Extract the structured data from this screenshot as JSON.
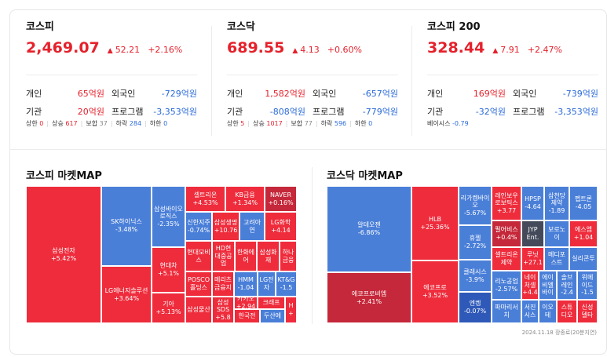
{
  "colors": {
    "up": "#e5212b",
    "down": "#2a6ad8",
    "up_tile": "#ee2c3c",
    "up_dark": "#c5283a",
    "down_tile": "#4a7fd8",
    "down_dark": "#2f59b8",
    "flat_tile": "#444a5a"
  },
  "indices": [
    {
      "name": "코스피",
      "value": "2,469.07",
      "arrow": "▲",
      "change": "52.21",
      "rate": "+2.16%",
      "investors": [
        {
          "label": "개인",
          "value": "65억원",
          "dir": "up"
        },
        {
          "label": "외국인",
          "value": "-729억원",
          "dir": "down"
        },
        {
          "label": "기관",
          "value": "20억원",
          "dir": "up"
        },
        {
          "label": "프로그램",
          "value": "-3,353억원",
          "dir": "down"
        }
      ],
      "breadth": [
        {
          "label": "상한",
          "value": "0",
          "dir": "up"
        },
        {
          "label": "상승",
          "value": "617",
          "dir": "up"
        },
        {
          "label": "보합",
          "value": "37",
          "dir": "flat"
        },
        {
          "label": "하락",
          "value": "284",
          "dir": "down"
        },
        {
          "label": "하한",
          "value": "0",
          "dir": "down"
        }
      ]
    },
    {
      "name": "코스닥",
      "value": "689.55",
      "arrow": "▲",
      "change": "4.13",
      "rate": "+0.60%",
      "investors": [
        {
          "label": "개인",
          "value": "1,582억원",
          "dir": "up"
        },
        {
          "label": "외국인",
          "value": "-657억원",
          "dir": "down"
        },
        {
          "label": "기관",
          "value": "-808억원",
          "dir": "down"
        },
        {
          "label": "프로그램",
          "value": "-779억원",
          "dir": "down"
        }
      ],
      "breadth": [
        {
          "label": "상한",
          "value": "5",
          "dir": "up"
        },
        {
          "label": "상승",
          "value": "1017",
          "dir": "up"
        },
        {
          "label": "보합",
          "value": "77",
          "dir": "flat"
        },
        {
          "label": "하락",
          "value": "596",
          "dir": "down"
        },
        {
          "label": "하한",
          "value": "0",
          "dir": "down"
        }
      ]
    },
    {
      "name": "코스피 200",
      "value": "328.44",
      "arrow": "▲",
      "change": "7.91",
      "rate": "+2.47%",
      "investors": [
        {
          "label": "개인",
          "value": "169억원",
          "dir": "up"
        },
        {
          "label": "외국인",
          "value": "-739억원",
          "dir": "down"
        },
        {
          "label": "기관",
          "value": "-32억원",
          "dir": "down"
        },
        {
          "label": "프로그램",
          "value": "-3,353억원",
          "dir": "down"
        }
      ],
      "basis": {
        "label": "베이시스",
        "value": "-0.79"
      }
    }
  ],
  "maps": [
    {
      "title": "코스피 마켓MAP",
      "tiles": [
        {
          "name": "삼성전자",
          "rate": "+5.42%",
          "c": "up"
        },
        {
          "name": "SK하이닉스",
          "rate": "-3.48%",
          "c": "down"
        },
        {
          "name": "LG에너지솔루션",
          "rate": "+3.64%",
          "c": "up"
        },
        {
          "name": "삼성바이오로직스",
          "rate": "-2.35%",
          "c": "down"
        },
        {
          "name": "현대차",
          "rate": "+5.1%",
          "c": "up"
        },
        {
          "name": "기아",
          "rate": "+5.13%",
          "c": "up"
        },
        {
          "name": "셀트리온",
          "rate": "+4.53%",
          "c": "up"
        },
        {
          "name": "KB금융",
          "rate": "+1.34%",
          "c": "up"
        },
        {
          "name": "NAVER",
          "rate": "+0.16%",
          "c": "updark"
        },
        {
          "name": "신한지주",
          "rate": "-0.74%",
          "c": "down"
        },
        {
          "name": "삼성생명",
          "rate": "+10.76",
          "c": "up"
        },
        {
          "name": "고려아연",
          "rate": "",
          "c": "down"
        },
        {
          "name": "LG화학",
          "rate": "+4.14",
          "c": "up"
        },
        {
          "name": "현대모비스",
          "rate": "",
          "c": "up"
        },
        {
          "name": "HD현대중공업",
          "rate": "",
          "c": "up"
        },
        {
          "name": "한화에어",
          "rate": "",
          "c": "up"
        },
        {
          "name": "삼성화재",
          "rate": "",
          "c": "up"
        },
        {
          "name": "하나금융",
          "rate": "",
          "c": "up"
        },
        {
          "name": "POSCO홀딩스",
          "rate": "",
          "c": "up"
        },
        {
          "name": "메리츠금융지",
          "rate": "",
          "c": "up"
        },
        {
          "name": "HMM",
          "rate": "-1.04",
          "c": "down"
        },
        {
          "name": "LG전자",
          "rate": "",
          "c": "down"
        },
        {
          "name": "KT&G",
          "rate": "-1.5",
          "c": "down"
        },
        {
          "name": "카카오",
          "rate": "+2.94",
          "c": "up"
        },
        {
          "name": "크래프",
          "rate": "",
          "c": "up"
        },
        {
          "name": "삼성물산",
          "rate": "",
          "c": "up"
        },
        {
          "name": "삼성SDS",
          "rate": "+5.8",
          "c": "up"
        },
        {
          "name": "한국전",
          "rate": "",
          "c": "up"
        },
        {
          "name": "두산에",
          "rate": "",
          "c": "down"
        },
        {
          "name": "H",
          "rate": "+",
          "c": "up"
        }
      ]
    },
    {
      "title": "코스닥 마켓MAP",
      "tiles": [
        {
          "name": "알테오젠",
          "rate": "-6.86%",
          "c": "down"
        },
        {
          "name": "에코프로비엠",
          "rate": "+2.41%",
          "c": "updark"
        },
        {
          "name": "HLB",
          "rate": "+25.36%",
          "c": "up"
        },
        {
          "name": "에코프로",
          "rate": "+3.52%",
          "c": "up"
        },
        {
          "name": "리가켐바이오",
          "rate": "-5.67%",
          "c": "down"
        },
        {
          "name": "휴젤",
          "rate": "-2.72%",
          "c": "down"
        },
        {
          "name": "클래시스",
          "rate": "-3.9%",
          "c": "down"
        },
        {
          "name": "엔켐",
          "rate": "-0.07%",
          "c": "downdark"
        },
        {
          "name": "레인보우로보틱스",
          "rate": "+3.77",
          "c": "up"
        },
        {
          "name": "HPSP",
          "rate": "-4.64",
          "c": "down"
        },
        {
          "name": "삼천당제약",
          "rate": "-1.89",
          "c": "down"
        },
        {
          "name": "펩트론",
          "rate": "-4.05",
          "c": "down"
        },
        {
          "name": "펄어비스",
          "rate": "+0.4%",
          "c": "updark"
        },
        {
          "name": "JYP Ent.",
          "rate": "",
          "c": "flat"
        },
        {
          "name": "보로노이",
          "rate": "",
          "c": "down"
        },
        {
          "name": "에스엠",
          "rate": "+1.04",
          "c": "up"
        },
        {
          "name": "셀트리온제약",
          "rate": "",
          "c": "up"
        },
        {
          "name": "루닛",
          "rate": "+27.1",
          "c": "up"
        },
        {
          "name": "메디포스트",
          "rate": "",
          "c": "down"
        },
        {
          "name": "실리콘투",
          "rate": "",
          "c": "down"
        },
        {
          "name": "리노공업",
          "rate": "-2.57%",
          "c": "down"
        },
        {
          "name": "네이처셀",
          "rate": "+4.4",
          "c": "up"
        },
        {
          "name": "에이비엘바이",
          "rate": "",
          "c": "down"
        },
        {
          "name": "솔브레인",
          "rate": "-2.4",
          "c": "down"
        },
        {
          "name": "위메이드",
          "rate": "-1.5",
          "c": "down"
        },
        {
          "name": "파마리서치",
          "rate": "",
          "c": "down"
        },
        {
          "name": "서진시스",
          "rate": "",
          "c": "down"
        },
        {
          "name": "이오테",
          "rate": "",
          "c": "down"
        },
        {
          "name": "스튜디오",
          "rate": "",
          "c": "up"
        },
        {
          "name": "신성델타",
          "rate": "",
          "c": "up"
        }
      ]
    }
  ],
  "footer": "2024.11.18 장종료(20분지연)"
}
